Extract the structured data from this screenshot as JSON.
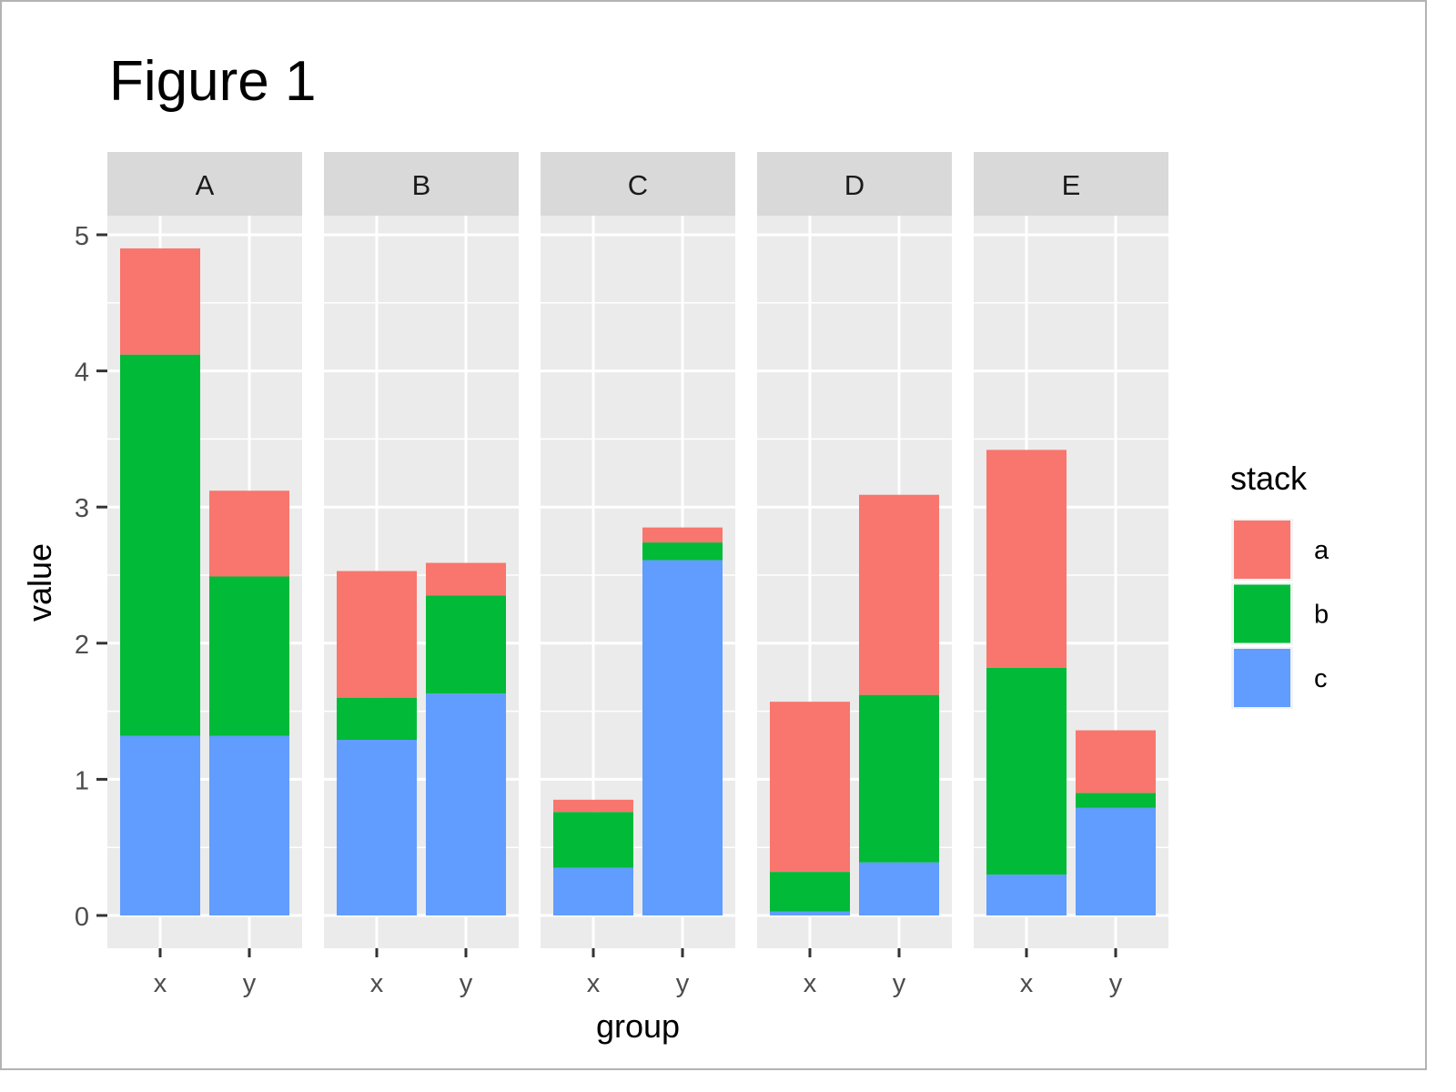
{
  "chart_data": {
    "type": "bar",
    "stacked": true,
    "faceted": true,
    "title": "Figure 1",
    "xlabel": "group",
    "ylabel": "value",
    "ylim": [
      0,
      5.2
    ],
    "yticks": [
      "0",
      "1",
      "2",
      "3",
      "4",
      "5"
    ],
    "ytick_values": [
      0,
      1,
      2,
      3,
      4,
      5
    ],
    "facets": [
      "A",
      "B",
      "C",
      "D",
      "E"
    ],
    "categories": [
      "x",
      "y"
    ],
    "legend": {
      "title": "stack",
      "position": "right",
      "entries": [
        "a",
        "b",
        "c"
      ]
    },
    "colors": {
      "a": "#F8766D",
      "b": "#00BA38",
      "c": "#619CFF"
    },
    "stack_order_bottom_to_top": [
      "c",
      "b",
      "a"
    ],
    "series": [
      {
        "name": "a",
        "values": {
          "A": [
            0.78,
            0.63
          ],
          "B": [
            0.93,
            0.24
          ],
          "C": [
            0.09,
            0.11
          ],
          "D": [
            1.25,
            1.47
          ],
          "E": [
            1.6,
            0.46
          ]
        }
      },
      {
        "name": "b",
        "values": {
          "A": [
            2.8,
            1.17
          ],
          "B": [
            0.31,
            0.72
          ],
          "C": [
            0.41,
            0.13
          ],
          "D": [
            0.29,
            1.23
          ],
          "E": [
            1.52,
            0.11
          ]
        }
      },
      {
        "name": "c",
        "values": {
          "A": [
            1.32,
            1.32
          ],
          "B": [
            1.29,
            1.63
          ],
          "C": [
            0.35,
            2.61
          ],
          "D": [
            0.03,
            0.39
          ],
          "E": [
            0.3,
            0.79
          ]
        }
      }
    ],
    "grid": true
  },
  "theme": {
    "panel_bg": "#EBEBEB",
    "strip_bg": "#D9D9D9",
    "grid_color": "#FFFFFF",
    "tick_color": "#333333",
    "text_color": "#4D4D4D",
    "title_color": "#000000",
    "legend_key_bg": "#F2F2F2",
    "border_color": "#B3B3B3"
  }
}
